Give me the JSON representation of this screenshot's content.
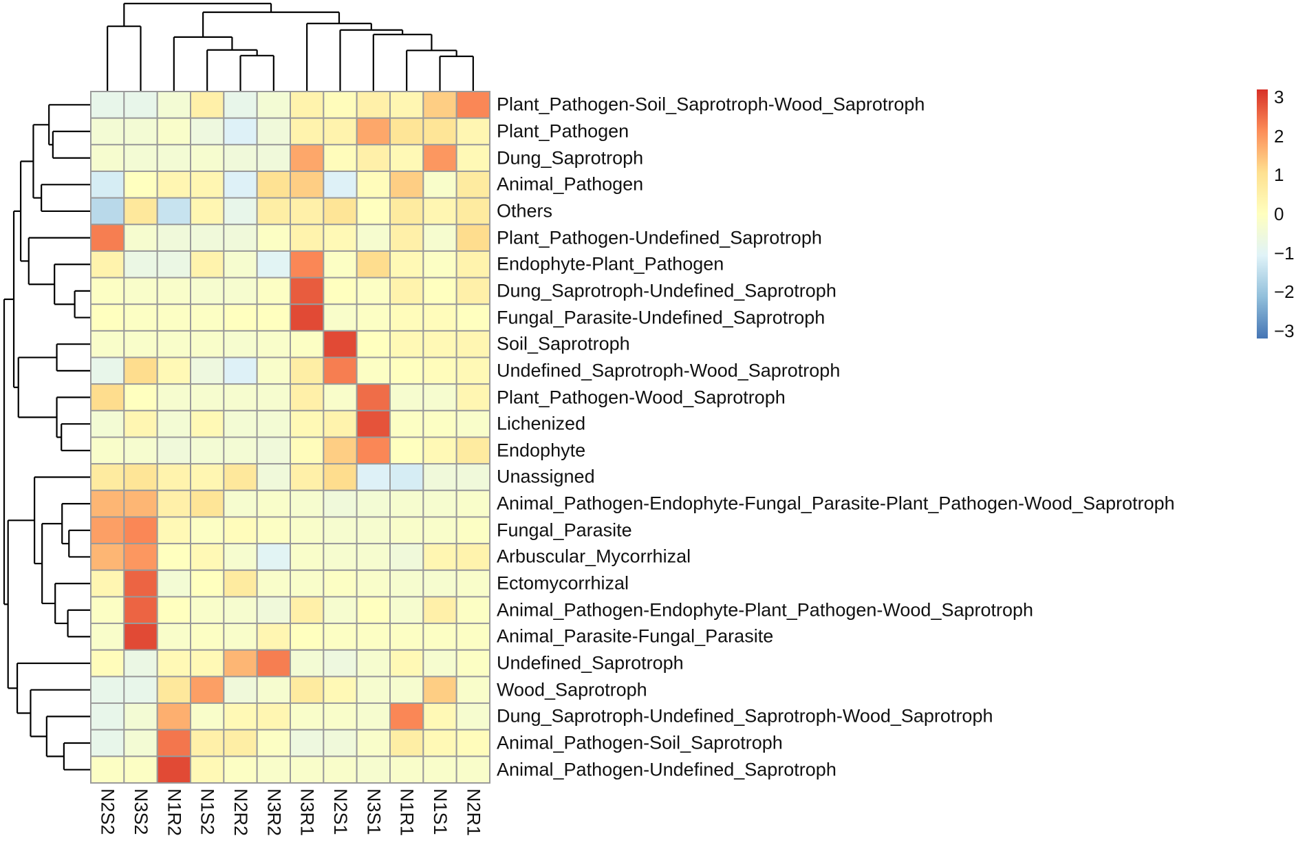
{
  "chart_data": {
    "type": "heatmap",
    "title": "",
    "columns": [
      "N2S2",
      "N3S2",
      "N1R2",
      "N1S2",
      "N2R2",
      "N3R2",
      "N3R1",
      "N2S1",
      "N3S1",
      "N1R1",
      "N1S1",
      "N2R1"
    ],
    "rows": [
      "Plant_Pathogen-Soil_Saprotroph-Wood_Saprotroph",
      "Plant_Pathogen",
      "Dung_Saprotroph",
      "Animal_Pathogen",
      "Others",
      "Plant_Pathogen-Undefined_Saprotroph",
      "Endophyte-Plant_Pathogen",
      "Dung_Saprotroph-Undefined_Saprotroph",
      "Fungal_Parasite-Undefined_Saprotroph",
      "Soil_Saprotroph",
      "Undefined_Saprotroph-Wood_Saprotroph",
      "Plant_Pathogen-Wood_Saprotroph",
      "Lichenized",
      "Endophyte",
      "Unassigned",
      "Animal_Pathogen-Endophyte-Fungal_Parasite-Plant_Pathogen-Wood_Saprotroph",
      "Fungal_Parasite",
      "Arbuscular_Mycorrhizal",
      "Ectomycorrhizal",
      "Animal_Pathogen-Endophyte-Plant_Pathogen-Wood_Saprotroph",
      "Animal_Parasite-Fungal_Parasite",
      "Undefined_Saprotroph",
      "Wood_Saprotroph",
      "Dung_Saprotroph-Undefined_Saprotroph-Wood_Saprotroph",
      "Animal_Pathogen-Soil_Saprotroph",
      "Animal_Pathogen-Undefined_Saprotroph"
    ],
    "values": [
      [
        -0.8,
        -0.8,
        -0.4,
        0.5,
        -0.8,
        -0.4,
        0.4,
        0.1,
        0.5,
        0.3,
        1.3,
        2.2
      ],
      [
        -0.4,
        -0.4,
        -0.2,
        -0.6,
        -1.1,
        -0.5,
        0.4,
        0.4,
        1.8,
        0.9,
        0.9,
        0.3
      ],
      [
        -0.3,
        -0.4,
        -0.4,
        -0.3,
        -0.5,
        -0.5,
        1.8,
        0.1,
        0.5,
        0.2,
        2.0,
        0.2
      ],
      [
        -1.2,
        0.0,
        0.3,
        0.3,
        -1.1,
        1.0,
        1.3,
        -1.1,
        0.1,
        1.3,
        -0.2,
        0.7
      ],
      [
        -1.6,
        0.8,
        -1.4,
        0.3,
        -0.8,
        0.6,
        0.5,
        0.9,
        0.0,
        0.7,
        0.3,
        0.7
      ],
      [
        2.3,
        -0.3,
        -0.5,
        -0.5,
        -0.5,
        -0.1,
        0.4,
        0.2,
        -0.3,
        0.5,
        -0.3,
        1.1
      ],
      [
        0.4,
        -0.7,
        -0.7,
        0.4,
        -0.3,
        -1.0,
        2.2,
        -0.1,
        1.1,
        0.2,
        -0.1,
        0.4
      ],
      [
        -0.1,
        -0.2,
        -0.2,
        -0.3,
        -0.3,
        -0.1,
        2.7,
        0.0,
        -0.1,
        0.4,
        0.0,
        0.5
      ],
      [
        0.0,
        -0.1,
        -0.1,
        -0.1,
        0.0,
        0.0,
        2.9,
        -0.2,
        -0.1,
        0.1,
        0.1,
        0.0
      ],
      [
        -0.2,
        -0.2,
        -0.2,
        -0.2,
        -0.3,
        -0.2,
        -0.1,
        2.9,
        0.0,
        0.2,
        0.2,
        0.3
      ],
      [
        -0.8,
        1.1,
        0.2,
        -0.6,
        -1.1,
        -0.2,
        0.6,
        2.3,
        -0.1,
        0.0,
        0.1,
        0.2
      ],
      [
        1.1,
        0.0,
        -0.3,
        -0.3,
        -0.3,
        -0.3,
        0.5,
        -0.2,
        2.5,
        -0.3,
        -0.3,
        0.3
      ],
      [
        -0.4,
        0.3,
        -0.4,
        0.2,
        -0.4,
        -0.4,
        0.2,
        0.4,
        2.8,
        -0.1,
        -0.1,
        -0.2
      ],
      [
        -0.2,
        -0.3,
        -0.5,
        -0.4,
        -0.4,
        -0.5,
        0.1,
        1.3,
        2.2,
        0.0,
        0.2,
        0.7
      ],
      [
        0.7,
        0.9,
        0.4,
        0.3,
        0.8,
        -0.5,
        0.5,
        1.1,
        -1.1,
        -1.2,
        -0.5,
        -0.5
      ],
      [
        1.6,
        1.6,
        0.5,
        0.9,
        -0.3,
        -0.2,
        -0.3,
        -0.5,
        -0.4,
        -0.3,
        -0.3,
        -0.2
      ],
      [
        1.9,
        2.2,
        0.2,
        -0.1,
        0.1,
        -0.1,
        -0.2,
        -0.3,
        -0.3,
        -0.2,
        -0.2,
        -0.1
      ],
      [
        1.6,
        2.0,
        0.0,
        0.2,
        -0.3,
        -1.0,
        -0.2,
        -0.3,
        -0.3,
        -0.5,
        0.3,
        0.4
      ],
      [
        0.3,
        2.6,
        -0.4,
        0.0,
        0.7,
        -0.2,
        -0.2,
        -0.1,
        -0.2,
        -0.3,
        -0.3,
        -0.2
      ],
      [
        -0.1,
        2.6,
        0.0,
        -0.2,
        -0.3,
        -0.5,
        0.5,
        -0.3,
        0.0,
        -0.3,
        0.5,
        -0.1
      ],
      [
        -0.2,
        2.9,
        -0.2,
        -0.1,
        -0.2,
        0.3,
        0.0,
        -0.1,
        -0.1,
        -0.1,
        -0.1,
        -0.1
      ],
      [
        0.1,
        -0.7,
        0.2,
        0.2,
        1.6,
        2.3,
        -0.4,
        -0.6,
        -0.3,
        0.2,
        -0.3,
        -0.1
      ],
      [
        -0.8,
        -0.8,
        0.8,
        1.9,
        -0.5,
        -0.3,
        0.7,
        0.2,
        -0.3,
        -0.3,
        1.3,
        -0.2
      ],
      [
        -0.8,
        -0.4,
        1.7,
        -0.2,
        0.2,
        0.3,
        -0.2,
        -0.2,
        -0.3,
        2.2,
        0.2,
        -0.3
      ],
      [
        -0.8,
        -0.4,
        2.4,
        0.5,
        0.6,
        -0.1,
        -0.6,
        -0.5,
        -0.2,
        0.6,
        0.2,
        0.1
      ],
      [
        -0.1,
        -0.1,
        2.9,
        0.2,
        -0.1,
        -0.2,
        -0.2,
        -0.2,
        -0.3,
        -0.2,
        -0.2,
        -0.2
      ]
    ],
    "color_scale": {
      "range": [
        -3.2,
        3.2
      ],
      "colors": [
        "#4575B4",
        "#91BFDB",
        "#E0F3F8",
        "#FFFFBF",
        "#FEE090",
        "#FC8D59",
        "#D73027"
      ],
      "ticks": [
        "3",
        "2",
        "1",
        "0",
        "−1",
        "−2",
        "−3"
      ],
      "tick_values": [
        3,
        2,
        1,
        0,
        -1,
        -2,
        -3
      ]
    },
    "legend_position": "top-right",
    "row_dendrogram": true,
    "column_dendrogram": true
  }
}
